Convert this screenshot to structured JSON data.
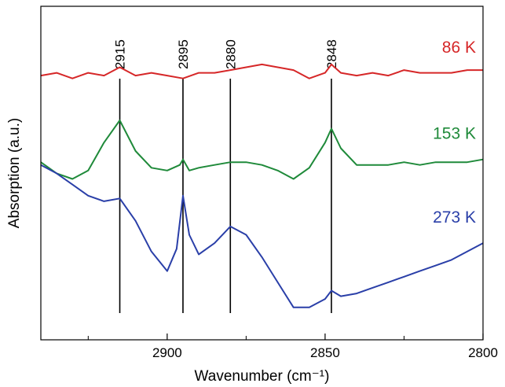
{
  "chart_data": {
    "type": "line",
    "xlabel": "Wavenumber (cm⁻¹)",
    "ylabel": "Absorption (a.u.)",
    "x_reversed": true,
    "xlim": [
      2940,
      2800
    ],
    "x_ticks": [
      2900,
      2850,
      2800
    ],
    "x_minor_ticks": [
      2925,
      2875,
      2825
    ],
    "y_ticks_shown": false,
    "grid": false,
    "peak_lines": [
      {
        "label": "2915",
        "x": 2915
      },
      {
        "label": "2895",
        "x": 2895
      },
      {
        "label": "2880",
        "x": 2880
      },
      {
        "label": "2848",
        "x": 2848
      }
    ],
    "series": [
      {
        "name": "86 K",
        "color": "#d62728",
        "points": [
          [
            2940,
            0.87
          ],
          [
            2935,
            0.88
          ],
          [
            2930,
            0.86
          ],
          [
            2925,
            0.88
          ],
          [
            2920,
            0.87
          ],
          [
            2915,
            0.9
          ],
          [
            2910,
            0.87
          ],
          [
            2905,
            0.88
          ],
          [
            2900,
            0.87
          ],
          [
            2895,
            0.86
          ],
          [
            2890,
            0.88
          ],
          [
            2885,
            0.88
          ],
          [
            2880,
            0.89
          ],
          [
            2875,
            0.9
          ],
          [
            2870,
            0.91
          ],
          [
            2865,
            0.9
          ],
          [
            2860,
            0.89
          ],
          [
            2855,
            0.86
          ],
          [
            2850,
            0.88
          ],
          [
            2848,
            0.91
          ],
          [
            2845,
            0.88
          ],
          [
            2840,
            0.87
          ],
          [
            2835,
            0.88
          ],
          [
            2830,
            0.87
          ],
          [
            2825,
            0.89
          ],
          [
            2820,
            0.88
          ],
          [
            2815,
            0.88
          ],
          [
            2810,
            0.88
          ],
          [
            2805,
            0.89
          ],
          [
            2800,
            0.89
          ]
        ]
      },
      {
        "name": "153 K",
        "color": "#1f8a3a",
        "points": [
          [
            2940,
            0.56
          ],
          [
            2935,
            0.52
          ],
          [
            2930,
            0.5
          ],
          [
            2925,
            0.53
          ],
          [
            2920,
            0.63
          ],
          [
            2915,
            0.71
          ],
          [
            2910,
            0.6
          ],
          [
            2905,
            0.54
          ],
          [
            2900,
            0.53
          ],
          [
            2896,
            0.55
          ],
          [
            2895,
            0.57
          ],
          [
            2893,
            0.53
          ],
          [
            2890,
            0.54
          ],
          [
            2885,
            0.55
          ],
          [
            2880,
            0.56
          ],
          [
            2875,
            0.56
          ],
          [
            2870,
            0.55
          ],
          [
            2865,
            0.53
          ],
          [
            2860,
            0.5
          ],
          [
            2855,
            0.54
          ],
          [
            2850,
            0.63
          ],
          [
            2848,
            0.68
          ],
          [
            2845,
            0.61
          ],
          [
            2840,
            0.55
          ],
          [
            2835,
            0.55
          ],
          [
            2830,
            0.55
          ],
          [
            2825,
            0.56
          ],
          [
            2820,
            0.55
          ],
          [
            2815,
            0.56
          ],
          [
            2810,
            0.56
          ],
          [
            2805,
            0.56
          ],
          [
            2800,
            0.57
          ]
        ]
      },
      {
        "name": "273 K",
        "color": "#2a3fa8",
        "points": [
          [
            2940,
            0.55
          ],
          [
            2935,
            0.52
          ],
          [
            2930,
            0.48
          ],
          [
            2925,
            0.44
          ],
          [
            2920,
            0.42
          ],
          [
            2915,
            0.43
          ],
          [
            2910,
            0.35
          ],
          [
            2905,
            0.24
          ],
          [
            2900,
            0.17
          ],
          [
            2897,
            0.25
          ],
          [
            2895,
            0.44
          ],
          [
            2893,
            0.3
          ],
          [
            2890,
            0.23
          ],
          [
            2885,
            0.27
          ],
          [
            2880,
            0.33
          ],
          [
            2875,
            0.3
          ],
          [
            2870,
            0.22
          ],
          [
            2865,
            0.13
          ],
          [
            2860,
            0.04
          ],
          [
            2855,
            0.04
          ],
          [
            2850,
            0.07
          ],
          [
            2848,
            0.1
          ],
          [
            2845,
            0.08
          ],
          [
            2840,
            0.09
          ],
          [
            2835,
            0.11
          ],
          [
            2830,
            0.13
          ],
          [
            2825,
            0.15
          ],
          [
            2820,
            0.17
          ],
          [
            2815,
            0.19
          ],
          [
            2810,
            0.21
          ],
          [
            2805,
            0.24
          ],
          [
            2800,
            0.27
          ]
        ]
      }
    ]
  }
}
